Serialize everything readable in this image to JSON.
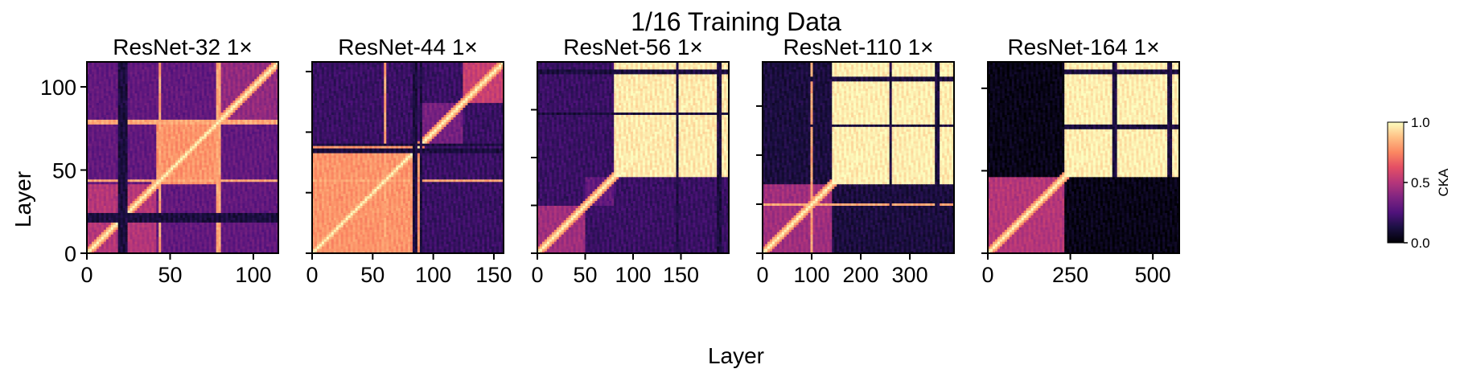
{
  "figure": {
    "suptitle": "1/16 Training Data",
    "xlabel": "Layer",
    "ylabel": "Layer"
  },
  "colorbar": {
    "label": "CKA",
    "colormap": "magma",
    "ticks": [
      "0.0",
      "0.5",
      "1.0"
    ],
    "range": [
      0,
      1
    ]
  },
  "chart_data": [
    {
      "type": "heatmap",
      "title": "ResNet-32 1×",
      "n_layers": 115,
      "xlim": [
        0,
        115
      ],
      "ylim": [
        0,
        115
      ],
      "xticks": [
        0,
        50,
        100
      ],
      "yticks": [
        0,
        50,
        100
      ],
      "stage_boundaries": [
        42,
        79
      ],
      "blocks": [
        {
          "range": [
            0,
            42
          ],
          "cka": 0.5
        },
        {
          "range": [
            42,
            79
          ],
          "cka": 0.78
        },
        {
          "range": [
            79,
            115
          ],
          "cka": 0.42
        }
      ],
      "off_diagonal_cka": 0.3,
      "bright_lines": [
        44,
        79
      ],
      "dark_lines": [
        20,
        23
      ],
      "diagonal_cka": 1.0
    },
    {
      "type": "heatmap",
      "title": "ResNet-44 1×",
      "n_layers": 158,
      "xlim": [
        0,
        158
      ],
      "ylim": [
        0,
        158
      ],
      "xticks": [
        0,
        50,
        100,
        150
      ],
      "yticks": [
        0,
        50,
        100,
        150
      ],
      "stage_boundaries": [
        88,
        125
      ],
      "blocks": [
        {
          "range": [
            0,
            88
          ],
          "cka": 0.78
        },
        {
          "range": [
            88,
            125
          ],
          "cka": 0.35
        },
        {
          "range": [
            125,
            158
          ],
          "cka": 0.55
        }
      ],
      "off_diagonal_cka": 0.2,
      "bright_lines": [
        60
      ],
      "dark_lines": [
        85,
        90
      ],
      "diagonal_cka": 1.0
    },
    {
      "type": "heatmap",
      "title": "ResNet-56 1×",
      "n_layers": 200,
      "xlim": [
        0,
        200
      ],
      "ylim": [
        0,
        200
      ],
      "xticks": [
        0,
        50,
        100,
        150
      ],
      "yticks": [
        0,
        50,
        100,
        150
      ],
      "stage_boundaries": [
        50,
        80
      ],
      "blocks": [
        {
          "range": [
            0,
            50
          ],
          "cka": 0.45
        },
        {
          "range": [
            50,
            80
          ],
          "cka": 0.3
        },
        {
          "range": [
            80,
            200
          ],
          "cka": 0.96
        }
      ],
      "off_diagonal_cka": 0.2,
      "bright_lines": [],
      "dark_lines": [
        146,
        190
      ],
      "diagonal_cka": 1.0
    },
    {
      "type": "heatmap",
      "title": "ResNet-110 1×",
      "n_layers": 390,
      "xlim": [
        0,
        390
      ],
      "ylim": [
        0,
        390
      ],
      "xticks": [
        0,
        100,
        200,
        300
      ],
      "yticks": [
        0,
        100,
        200,
        300
      ],
      "stage_boundaries": [
        140
      ],
      "blocks": [
        {
          "range": [
            0,
            140
          ],
          "cka": 0.45
        },
        {
          "range": [
            140,
            390
          ],
          "cka": 0.97
        }
      ],
      "off_diagonal_cka": 0.12,
      "bright_lines": [
        100
      ],
      "dark_lines": [
        260,
        355
      ],
      "diagonal_cka": 1.0
    },
    {
      "type": "heatmap",
      "title": "ResNet-164 1×",
      "n_layers": 580,
      "xlim": [
        0,
        580
      ],
      "ylim": [
        0,
        580
      ],
      "xticks": [
        0,
        250,
        500
      ],
      "yticks": [
        0,
        250,
        500
      ],
      "stage_boundaries": [
        230
      ],
      "blocks": [
        {
          "range": [
            0,
            230
          ],
          "cka": 0.5
        },
        {
          "range": [
            230,
            580
          ],
          "cka": 0.97
        }
      ],
      "off_diagonal_cka": 0.04,
      "bright_lines": [],
      "dark_lines": [
        385,
        550
      ],
      "diagonal_cka": 1.0
    }
  ]
}
